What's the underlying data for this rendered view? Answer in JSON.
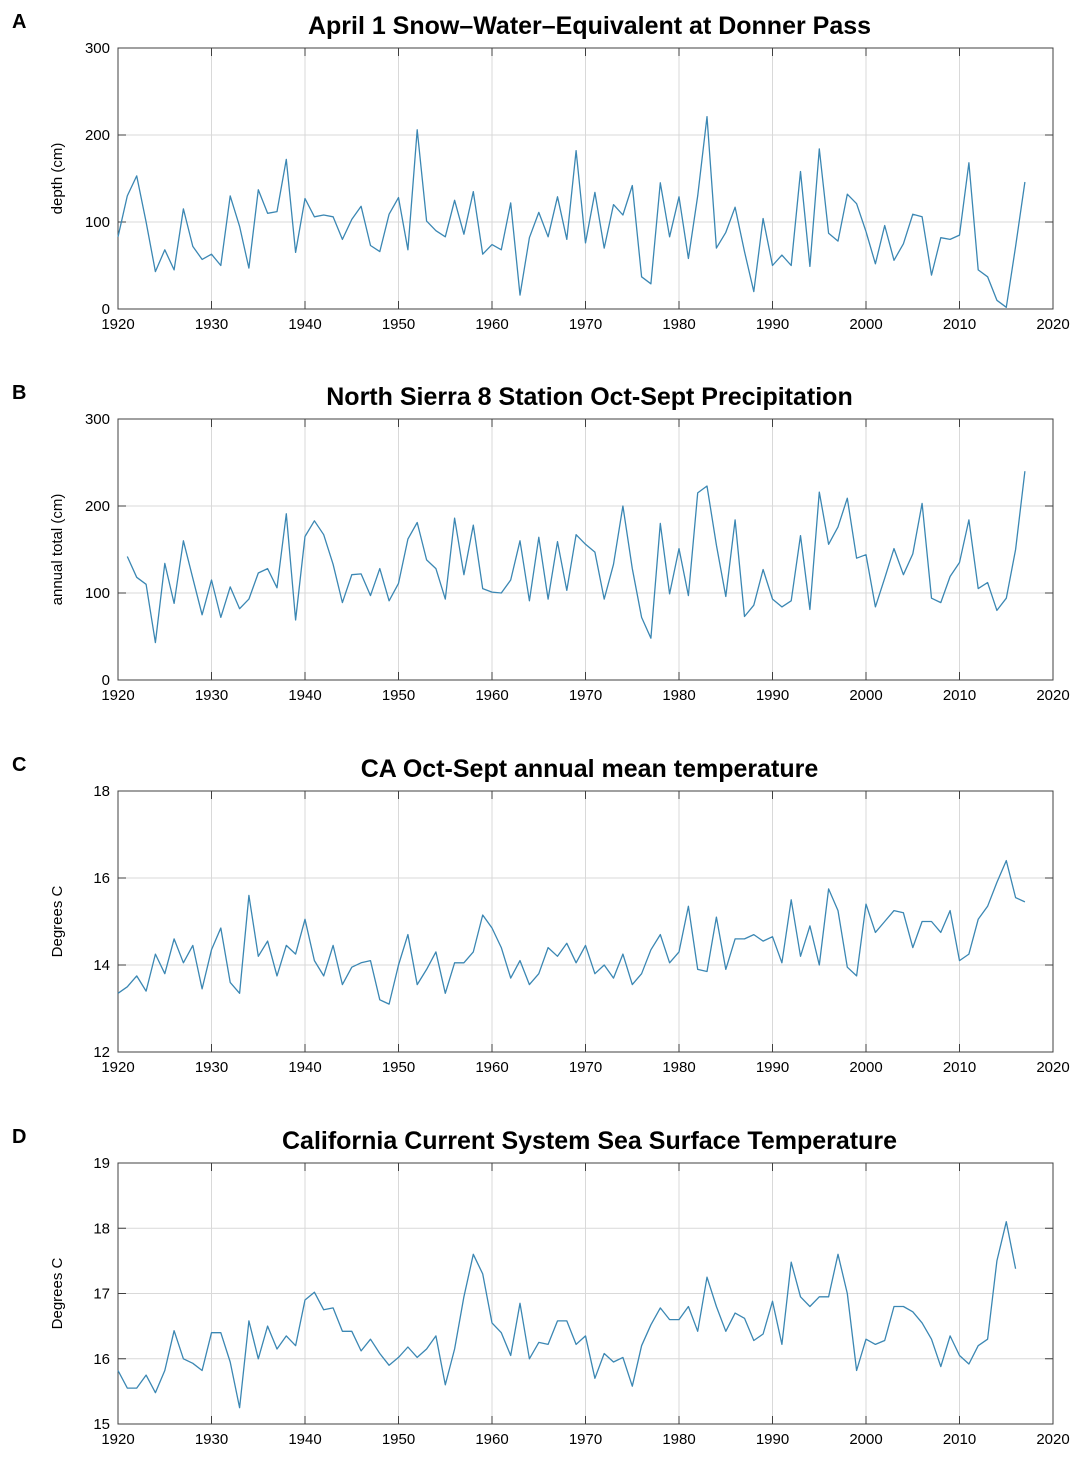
{
  "chart_data": [
    {
      "type": "line",
      "panel": "A",
      "title": "April 1 Snow–Water–Equivalent at Donner Pass",
      "xlabel": "",
      "ylabel": "depth (cm)",
      "xlim": [
        1920,
        2020
      ],
      "ylim": [
        0,
        300
      ],
      "xticks": [
        1920,
        1930,
        1940,
        1950,
        1960,
        1970,
        1980,
        1990,
        2000,
        2010,
        2020
      ],
      "yticks": [
        0,
        100,
        200,
        300
      ],
      "grid": true,
      "series": [
        {
          "x_start": 1920,
          "values": [
            83,
            130,
            153,
            100,
            43,
            68,
            45,
            115,
            72,
            57,
            63,
            50,
            130,
            95,
            47,
            137,
            110,
            112,
            172,
            65,
            127,
            106,
            108,
            106,
            80,
            103,
            118,
            73,
            66,
            109,
            128,
            68,
            206,
            101,
            90,
            83,
            125,
            86,
            135,
            63,
            74,
            68,
            122,
            16,
            82,
            111,
            83,
            129,
            80,
            182,
            76,
            134,
            70,
            120,
            108,
            142,
            37,
            29,
            145,
            83,
            129,
            58,
            130,
            221,
            70,
            88,
            117,
            66,
            20,
            104,
            50,
            62,
            50,
            158,
            49,
            184,
            87,
            78,
            132,
            121,
            89,
            52,
            96,
            56,
            75,
            109,
            106,
            39,
            82,
            80,
            85,
            168,
            45,
            37,
            10,
            2,
            72,
            146
          ]
        }
      ]
    },
    {
      "type": "line",
      "panel": "B",
      "title": "North Sierra 8 Station Oct-Sept Precipitation",
      "xlabel": "",
      "ylabel": "annual total (cm)",
      "xlim": [
        1920,
        2020
      ],
      "ylim": [
        0,
        300
      ],
      "xticks": [
        1920,
        1930,
        1940,
        1950,
        1960,
        1970,
        1980,
        1990,
        2000,
        2010,
        2020
      ],
      "yticks": [
        0,
        100,
        200,
        300
      ],
      "grid": true,
      "series": [
        {
          "x_start": 1921,
          "values": [
            142,
            118,
            110,
            43,
            134,
            88,
            160,
            117,
            75,
            115,
            72,
            107,
            82,
            93,
            123,
            128,
            106,
            191,
            69,
            165,
            183,
            167,
            133,
            89,
            121,
            122,
            97,
            128,
            91,
            111,
            162,
            181,
            138,
            128,
            93,
            186,
            121,
            178,
            105,
            101,
            100,
            115,
            160,
            91,
            164,
            93,
            159,
            103,
            167,
            156,
            147,
            93,
            133,
            200,
            128,
            72,
            48,
            180,
            99,
            151,
            97,
            215,
            223,
            155,
            96,
            184,
            73,
            86,
            127,
            93,
            84,
            91,
            166,
            81,
            216,
            156,
            176,
            209,
            140,
            144,
            84,
            117,
            151,
            121,
            145,
            203,
            94,
            89,
            119,
            135,
            184,
            105,
            112,
            80,
            94,
            150,
            240
          ]
        }
      ]
    },
    {
      "type": "line",
      "panel": "C",
      "title": "CA Oct-Sept annual mean temperature",
      "xlabel": "",
      "ylabel": "Degrees C",
      "xlim": [
        1920,
        2020
      ],
      "ylim": [
        12,
        18
      ],
      "xticks": [
        1920,
        1930,
        1940,
        1950,
        1960,
        1970,
        1980,
        1990,
        2000,
        2010,
        2020
      ],
      "yticks": [
        12,
        14,
        16,
        18
      ],
      "grid": true,
      "series": [
        {
          "x_start": 1920,
          "values": [
            13.35,
            13.5,
            13.75,
            13.4,
            14.25,
            13.8,
            14.6,
            14.05,
            14.45,
            13.45,
            14.35,
            14.85,
            13.6,
            13.35,
            15.6,
            14.2,
            14.55,
            13.75,
            14.45,
            14.25,
            15.05,
            14.1,
            13.75,
            14.45,
            13.55,
            13.95,
            14.05,
            14.1,
            13.2,
            13.1,
            14.0,
            14.7,
            13.55,
            13.9,
            14.3,
            13.35,
            14.05,
            14.05,
            14.3,
            15.15,
            14.85,
            14.4,
            13.7,
            14.1,
            13.55,
            13.8,
            14.4,
            14.2,
            14.5,
            14.05,
            14.45,
            13.8,
            14.0,
            13.7,
            14.25,
            13.55,
            13.8,
            14.35,
            14.7,
            14.05,
            14.3,
            15.35,
            13.9,
            13.85,
            15.1,
            13.9,
            14.6,
            14.6,
            14.7,
            14.55,
            14.65,
            14.05,
            15.5,
            14.2,
            14.9,
            14.0,
            15.75,
            15.25,
            13.95,
            13.75,
            15.4,
            14.75,
            15.0,
            15.25,
            15.2,
            14.4,
            15.0,
            15.0,
            14.75,
            15.25,
            14.1,
            14.25,
            15.05,
            15.35,
            15.9,
            16.4,
            15.55,
            15.45
          ]
        }
      ]
    },
    {
      "type": "line",
      "panel": "D",
      "title": "California Current System Sea Surface Temperature",
      "xlabel": "",
      "ylabel": "Degrees C",
      "xlim": [
        1920,
        2020
      ],
      "ylim": [
        15,
        19
      ],
      "xticks": [
        1920,
        1930,
        1940,
        1950,
        1960,
        1970,
        1980,
        1990,
        2000,
        2010,
        2020
      ],
      "yticks": [
        15,
        16,
        17,
        18,
        19
      ],
      "grid": true,
      "series": [
        {
          "x_start": 1920,
          "values": [
            15.82,
            15.55,
            15.55,
            15.75,
            15.48,
            15.82,
            16.43,
            16.0,
            15.93,
            15.82,
            16.4,
            16.4,
            15.95,
            15.25,
            16.58,
            16.0,
            16.5,
            16.15,
            16.35,
            16.2,
            16.9,
            17.02,
            16.75,
            16.78,
            16.42,
            16.42,
            16.12,
            16.3,
            16.08,
            15.9,
            16.02,
            16.18,
            16.02,
            16.15,
            16.35,
            15.6,
            16.15,
            16.95,
            17.6,
            17.3,
            16.55,
            16.4,
            16.05,
            16.85,
            16.0,
            16.25,
            16.22,
            16.58,
            16.58,
            16.22,
            16.35,
            15.7,
            16.08,
            15.95,
            16.02,
            15.58,
            16.2,
            16.52,
            16.78,
            16.6,
            16.6,
            16.8,
            16.42,
            17.25,
            16.8,
            16.42,
            16.7,
            16.62,
            16.28,
            16.38,
            16.88,
            16.22,
            17.48,
            16.95,
            16.8,
            16.95,
            16.95,
            17.6,
            17.0,
            15.82,
            16.3,
            16.22,
            16.28,
            16.8,
            16.8,
            16.72,
            16.55,
            16.3,
            15.88,
            16.35,
            16.05,
            15.92,
            16.2,
            16.3,
            17.5,
            18.1,
            17.38
          ]
        }
      ]
    }
  ]
}
